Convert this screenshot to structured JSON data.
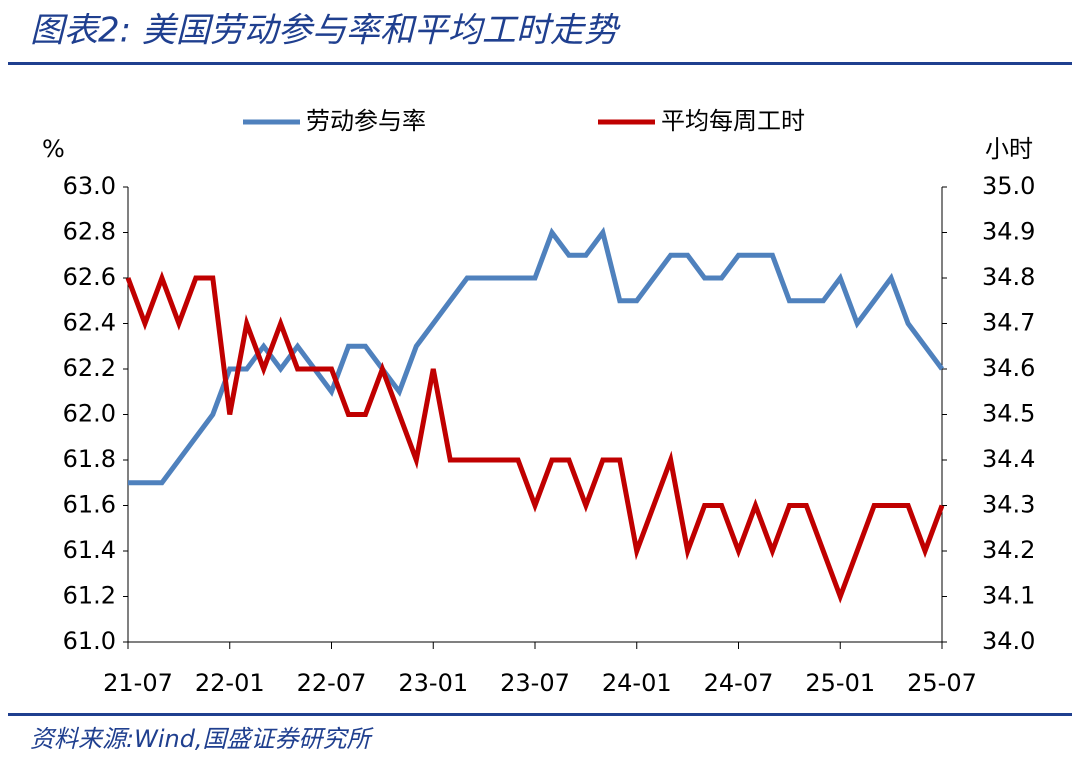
{
  "chart_data": {
    "type": "line",
    "title": "图表2:  美国劳动参与率和平均工时走势",
    "source": "资料来源:Wind,国盛证券研究所",
    "ylabel": "%",
    "y2label": "小时",
    "categories": [
      "21-07",
      null,
      null,
      null,
      null,
      null,
      "22-01",
      null,
      null,
      null,
      null,
      null,
      "22-07",
      null,
      null,
      null,
      null,
      null,
      "23-01",
      null,
      null,
      null,
      null,
      null,
      "23-07",
      null,
      null,
      null,
      null,
      null,
      "24-01",
      null,
      null,
      null,
      null,
      null,
      "24-07",
      null,
      null,
      null,
      null,
      null,
      "25-01",
      null,
      null,
      null,
      null,
      null,
      "25-07"
    ],
    "series": [
      {
        "name": "劳动参与率",
        "color": "#4f81bd",
        "axis": "y",
        "values": [
          61.7,
          61.7,
          61.7,
          61.8,
          61.9,
          62.0,
          62.2,
          62.2,
          62.3,
          62.2,
          62.3,
          62.2,
          62.1,
          62.3,
          62.3,
          62.2,
          62.1,
          62.3,
          62.4,
          62.5,
          62.6,
          62.6,
          62.6,
          62.6,
          62.6,
          62.8,
          62.7,
          62.7,
          62.8,
          62.5,
          62.5,
          62.6,
          62.7,
          62.7,
          62.6,
          62.6,
          62.7,
          62.7,
          62.7,
          62.5,
          62.5,
          62.5,
          62.6,
          62.4,
          62.5,
          62.6,
          62.4,
          62.3,
          62.2
        ]
      },
      {
        "name": "平均每周工时",
        "color": "#c00000",
        "axis": "y2",
        "values": [
          34.8,
          34.7,
          34.8,
          34.7,
          34.8,
          34.8,
          34.5,
          34.7,
          34.6,
          34.7,
          34.6,
          34.6,
          34.6,
          34.5,
          34.5,
          34.6,
          34.5,
          34.4,
          34.6,
          34.4,
          34.4,
          34.4,
          34.4,
          34.4,
          34.3,
          34.4,
          34.4,
          34.3,
          34.4,
          34.4,
          34.2,
          34.3,
          34.4,
          34.2,
          34.3,
          34.3,
          34.2,
          34.3,
          34.2,
          34.3,
          34.3,
          34.2,
          34.1,
          34.2,
          34.3,
          34.3,
          34.3,
          34.2,
          34.3
        ]
      }
    ],
    "ylim": [
      61.0,
      63.0
    ],
    "yticks": [
      {
        "value": 61.0,
        "label": "61.0"
      },
      61.2,
      61.4,
      61.6,
      61.8,
      {
        "value": 62.0,
        "label": "62.0"
      },
      62.2,
      62.4,
      62.6,
      62.8,
      {
        "value": 63.0,
        "label": "63.0"
      }
    ],
    "y2lim": [
      34.0,
      35.0
    ],
    "y2ticks": [
      {
        "value": 34.0,
        "label": "34.0"
      },
      34.1,
      34.2,
      34.3,
      34.4,
      34.5,
      34.6,
      34.7,
      34.8,
      34.9,
      {
        "value": 35.0,
        "label": "35.0"
      }
    ],
    "grid": false,
    "legend": "top"
  }
}
